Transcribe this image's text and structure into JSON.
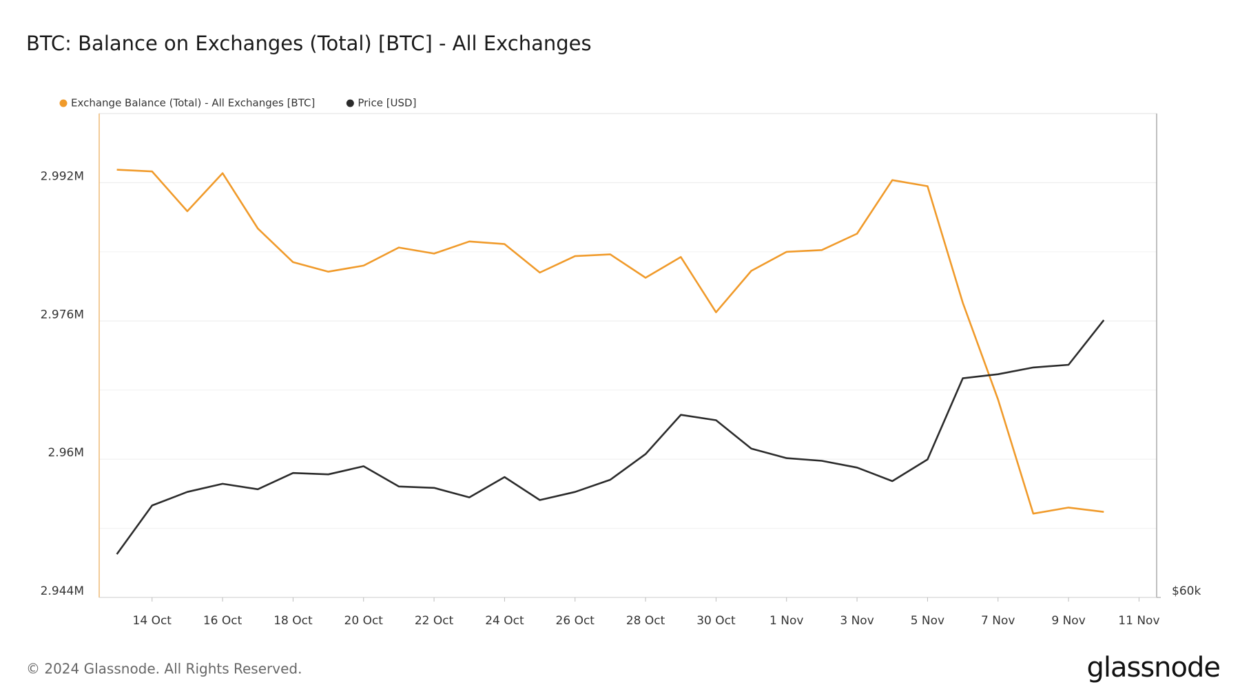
{
  "chart_data": {
    "type": "line",
    "title": "BTC: Balance on Exchanges (Total) [BTC] - All Exchanges",
    "categories": [
      null,
      "14 Oct",
      null,
      "16 Oct",
      null,
      "18 Oct",
      null,
      "20 Oct",
      null,
      "22 Oct",
      null,
      "24 Oct",
      null,
      "26 Oct",
      null,
      "28 Oct",
      null,
      "30 Oct",
      null,
      "1 Nov",
      null,
      "3 Nov",
      null,
      "5 Nov",
      null,
      "7 Nov",
      null,
      "9 Nov",
      null,
      "11 Nov"
    ],
    "series": [
      {
        "name": "Exchange Balance (Total) - All Exchanges [BTC]",
        "color": "#f09a2a",
        "values": [
          2993500,
          2993300,
          2988700,
          2993100,
          2986700,
          2982800,
          2981700,
          2982400,
          2984500,
          2983800,
          2985200,
          2984900,
          2981600,
          2983500,
          2983700,
          2981000,
          2983400,
          2977000,
          2981800,
          2984000,
          2984200,
          2986100,
          2992300,
          2991600,
          2978100,
          2966900,
          2953700,
          2954400,
          2953900,
          null
        ]
      },
      {
        "name": "Price [USD]",
        "color": "#2b2b2b",
        "axis": "y2",
        "values": [
          63200,
          66800,
          67800,
          68400,
          68000,
          69200,
          69100,
          69700,
          68200,
          68100,
          67400,
          68900,
          67200,
          67800,
          68700,
          70600,
          73500,
          73100,
          71000,
          70300,
          70100,
          69600,
          68600,
          70200,
          76200,
          76500,
          77000,
          77200,
          80500,
          null
        ]
      }
    ],
    "ylim": [
      2944000,
      3000000
    ],
    "yticks": [
      {
        "value": 2944000,
        "label": "2.944M"
      },
      {
        "value": 2960000,
        "label": "2.96M"
      },
      {
        "value": 2976000,
        "label": "2.976M"
      },
      {
        "value": 2992000,
        "label": "2.992M"
      }
    ],
    "minor_yticks": [
      2952000,
      2968000,
      2984000
    ],
    "y2lim": [
      60000,
      95770
    ],
    "y2ticks": [
      {
        "value": 60000,
        "label": "$60k"
      }
    ],
    "grid": true,
    "legend": "top-left",
    "footer": "© 2024 Glassnode. All Rights Reserved.",
    "logo": "glassnode"
  }
}
